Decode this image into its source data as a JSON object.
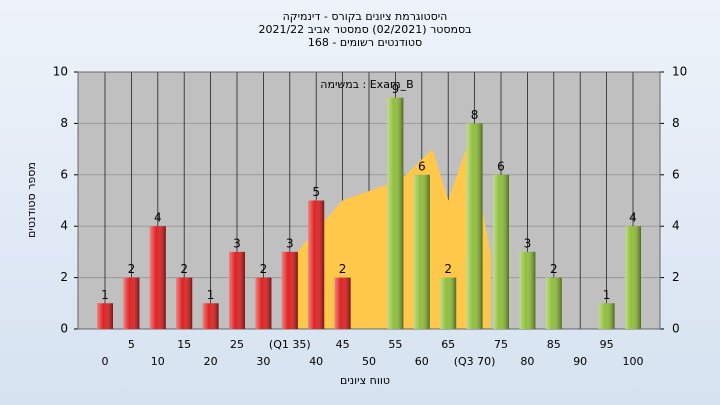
{
  "chart_data": {
    "type": "bar",
    "title": "היסטוגרמת ציונים בקורס - דינמיקה",
    "subtitle": "בסמסטר  (02/2021)  סמסטר אביב 2021/22",
    "subtitle2": "סטודנטים רשומים - 168",
    "annotation": "במשימה : Exam_B",
    "xlabel": "טווח ציונים",
    "ylabel": "מספר סטודנטים",
    "categories": [
      "0",
      "5",
      "10",
      "15",
      "20",
      "25",
      "30",
      "(Q1 35)",
      "40",
      "45",
      "50",
      "55",
      "60",
      "65",
      "(Q3 70)",
      "75",
      "80",
      "85",
      "90",
      "95",
      "100"
    ],
    "values": [
      1,
      2,
      4,
      2,
      1,
      3,
      2,
      3,
      5,
      2,
      0,
      9,
      6,
      2,
      8,
      6,
      3,
      2,
      0,
      1,
      4
    ],
    "colors": [
      "#e02020",
      "#e02020",
      "#e02020",
      "#e02020",
      "#e02020",
      "#e02020",
      "#e02020",
      "#e02020",
      "#e02020",
      "#e02020",
      "#e02020",
      "#8fbf3a",
      "#8fbf3a",
      "#8fbf3a",
      "#8fbf3a",
      "#8fbf3a",
      "#8fbf3a",
      "#8fbf3a",
      "#8fbf3a",
      "#8fbf3a",
      "#8fbf3a"
    ],
    "area": {
      "color": "#ffc84a",
      "x": [
        36.4,
        36.4,
        45,
        56,
        62,
        65,
        69,
        73,
        73
      ],
      "values": [
        0,
        3,
        5,
        5.8,
        7,
        5,
        7.4,
        2.9,
        0
      ]
    },
    "xlim": [
      -5,
      105
    ],
    "ylim": [
      0,
      10
    ],
    "yticks": [
      0,
      2,
      4,
      6,
      8,
      10
    ],
    "y2lim": [
      0,
      10
    ],
    "y2ticks": [
      0,
      2,
      4,
      6,
      8,
      10
    ],
    "grid": true
  }
}
